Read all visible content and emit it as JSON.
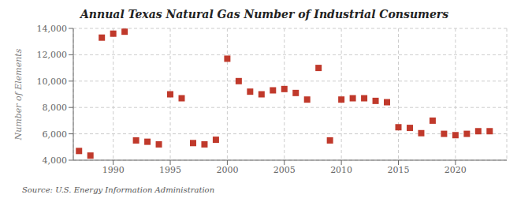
{
  "chart_data": {
    "type": "scatter",
    "title": "Annual Texas Natural Gas Number of Industrial Consumers",
    "ylabel": "Number of Elements",
    "annotations": [
      "Source: U.S. Energy Information Administration"
    ],
    "x": [
      1987,
      1988,
      1989,
      1990,
      1991,
      1992,
      1993,
      1994,
      1995,
      1996,
      1997,
      1998,
      1999,
      2000,
      2001,
      2002,
      2003,
      2004,
      2005,
      2006,
      2007,
      2008,
      2009,
      2010,
      2011,
      2012,
      2013,
      2014,
      2015,
      2016,
      2017,
      2018,
      2019,
      2020,
      2021,
      2022,
      2023
    ],
    "values": [
      4700,
      4350,
      13300,
      13600,
      13750,
      5500,
      5400,
      5200,
      9000,
      8700,
      5300,
      5200,
      5550,
      11700,
      10000,
      9200,
      9000,
      9300,
      9400,
      9100,
      8600,
      11000,
      5500,
      8600,
      8700,
      8700,
      8500,
      8400,
      6500,
      6450,
      6050,
      7000,
      6000,
      5900,
      6000,
      6200,
      6200
    ],
    "color": "#c0392b",
    "marker": "square",
    "xlim": [
      1986.5,
      2024.5
    ],
    "xticks": [
      1990,
      1995,
      2000,
      2005,
      2010,
      2015,
      2020
    ],
    "ylim": [
      4000,
      14000
    ],
    "yticks": [
      {
        "value": 4000,
        "label": "4,000"
      },
      {
        "value": 6000,
        "label": "6,000"
      },
      {
        "value": 8000,
        "label": "8,000"
      },
      {
        "value": 10000,
        "label": "10,000"
      },
      {
        "value": 12000,
        "label": "12,000"
      },
      {
        "value": 14000,
        "label": "14,000"
      }
    ],
    "grid": true
  }
}
